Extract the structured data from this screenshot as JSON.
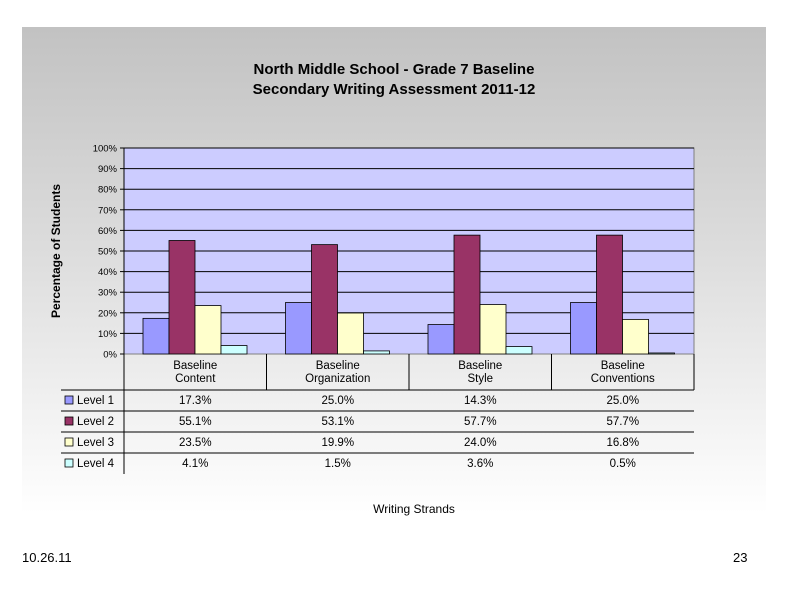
{
  "chart_data": {
    "type": "bar",
    "title": "North Middle School - Grade 7 Baseline",
    "subtitle": "Secondary Writing Assessment 2011-12",
    "xlabel": "Writing Strands",
    "ylabel": "Percentage of Students",
    "ylim": [
      0,
      100
    ],
    "y_ticks": [
      "0%",
      "10%",
      "20%",
      "30%",
      "40%",
      "50%",
      "60%",
      "70%",
      "80%",
      "90%",
      "100%"
    ],
    "grid": true,
    "legend": "data-table-left",
    "categories": [
      [
        "Baseline",
        "Content"
      ],
      [
        "Baseline",
        "Organization"
      ],
      [
        "Baseline",
        "Style"
      ],
      [
        "Baseline",
        "Conventions"
      ]
    ],
    "series": [
      {
        "name": "Level 1",
        "color": "#9999ff",
        "values": [
          17.3,
          25.0,
          14.3,
          25.0
        ],
        "labels": [
          "17.3%",
          "25.0%",
          "14.3%",
          "25.0%"
        ]
      },
      {
        "name": "Level 2",
        "color": "#993366",
        "values": [
          55.1,
          53.1,
          57.7,
          57.7
        ],
        "labels": [
          "55.1%",
          "53.1%",
          "57.7%",
          "57.7%"
        ]
      },
      {
        "name": "Level 3",
        "color": "#ffffcc",
        "values": [
          23.5,
          19.9,
          24.0,
          16.8
        ],
        "labels": [
          "23.5%",
          "19.9%",
          "24.0%",
          "16.8%"
        ]
      },
      {
        "name": "Level 4",
        "color": "#ccffff",
        "values": [
          4.1,
          1.5,
          3.6,
          0.5
        ],
        "labels": [
          "4.1%",
          "1.5%",
          "3.6%",
          "0.5%"
        ]
      }
    ],
    "plot_background": "#ccccff"
  },
  "footer": {
    "date": "10.26.11",
    "page_number": "23"
  }
}
